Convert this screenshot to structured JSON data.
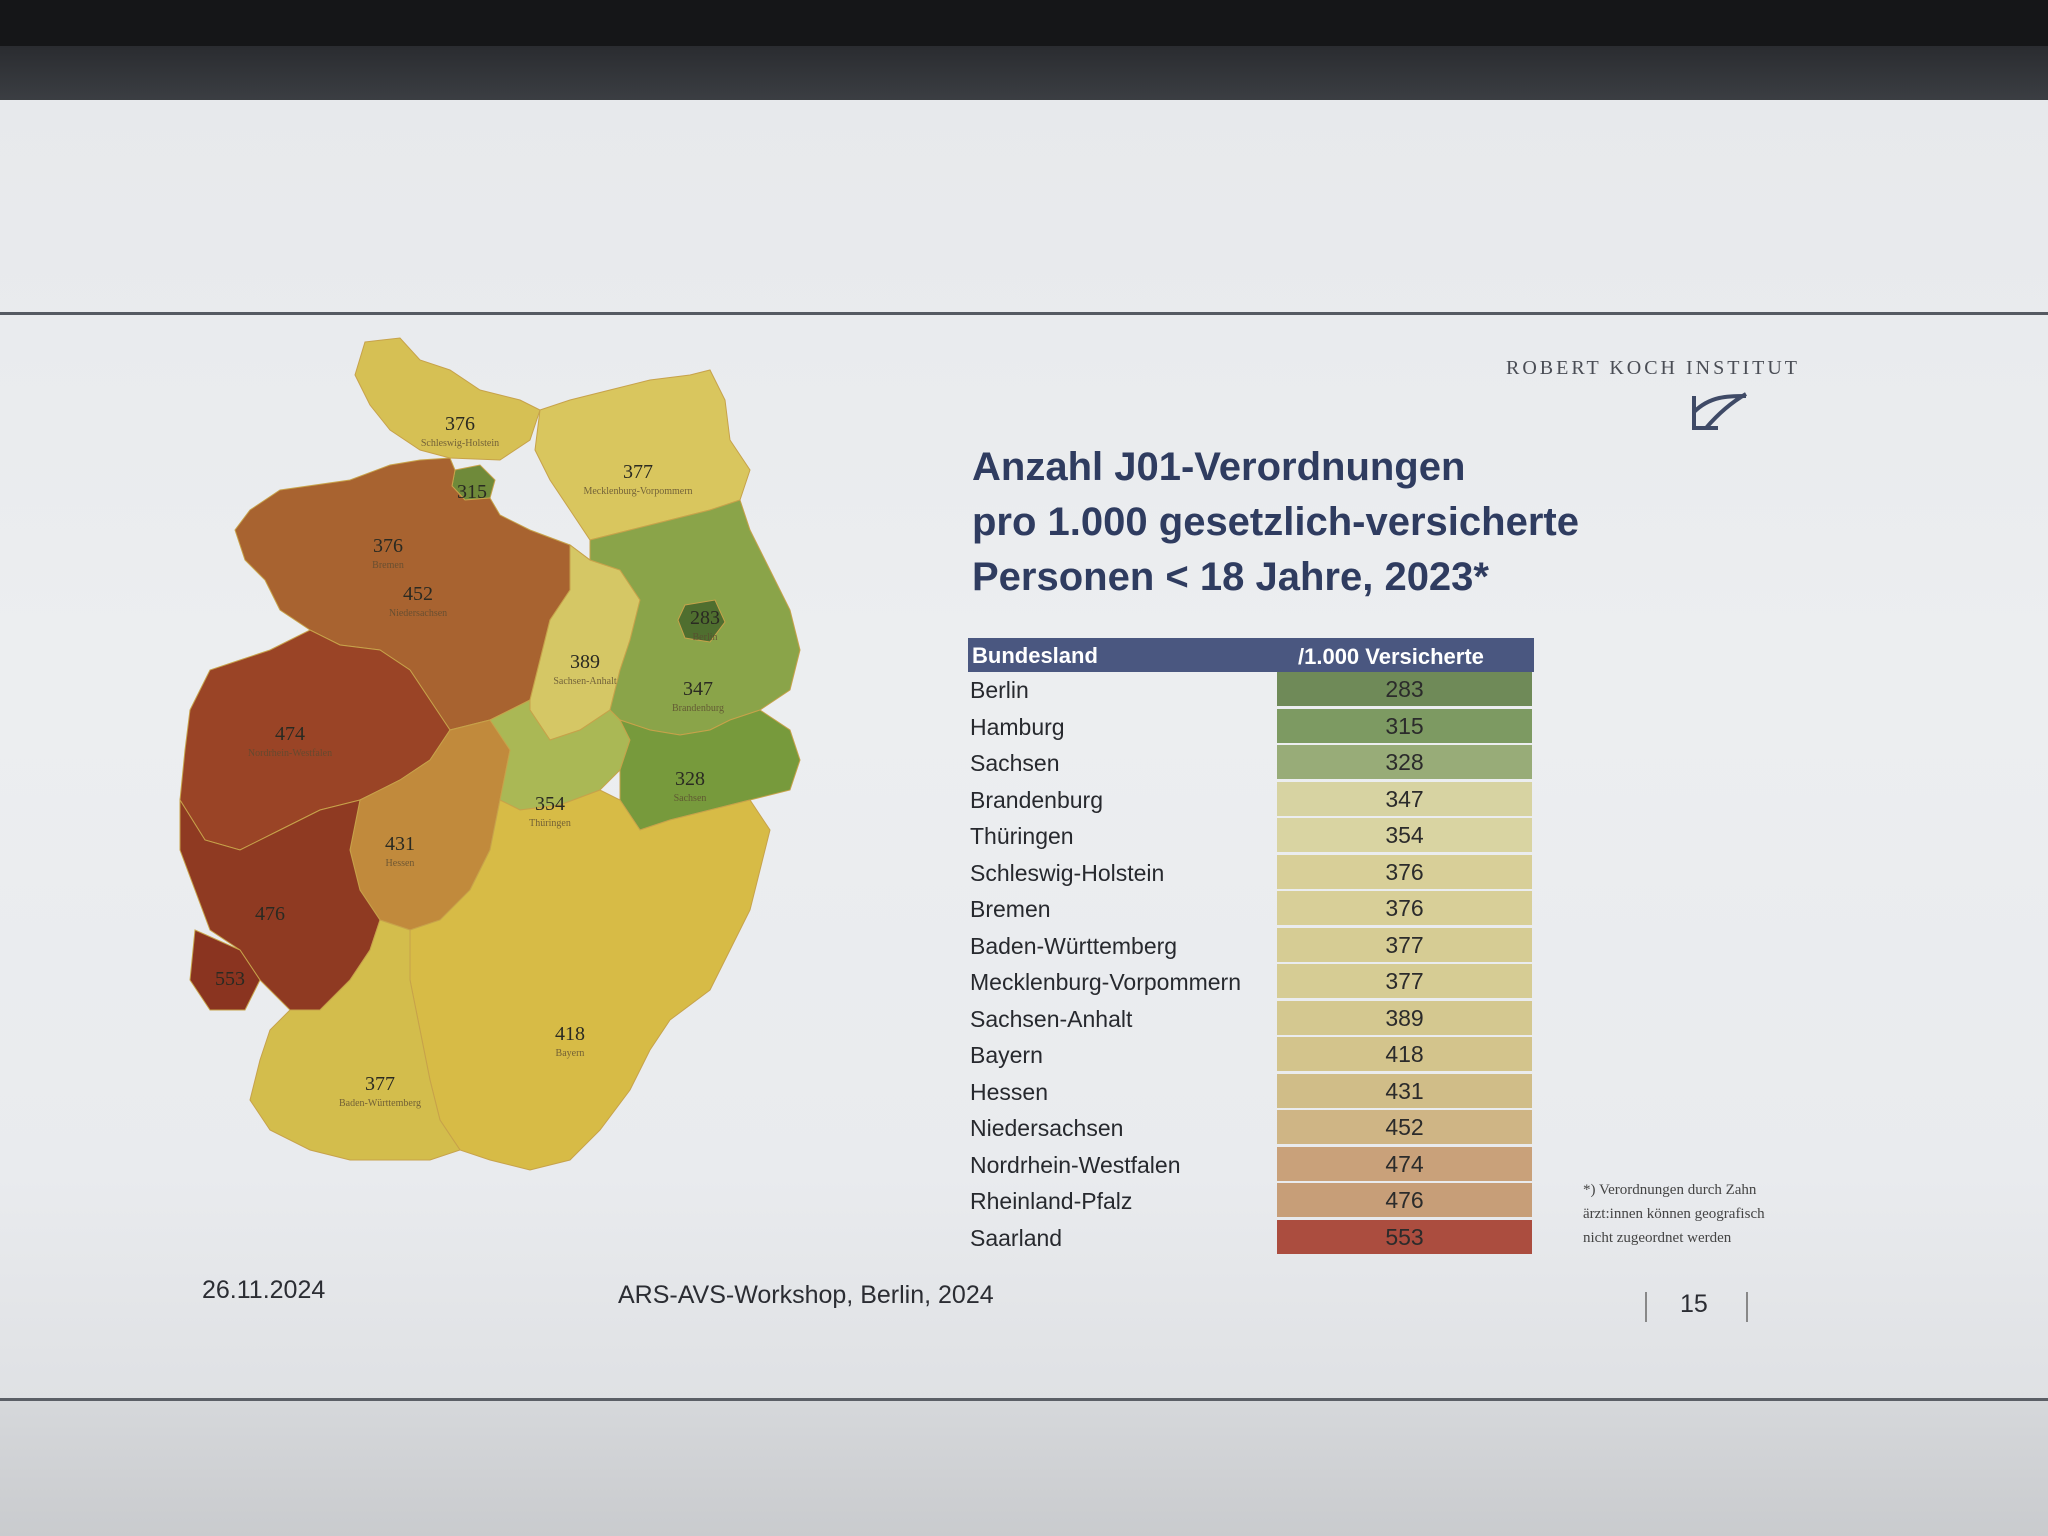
{
  "logo": {
    "text": "ROBERT KOCH INSTITUT"
  },
  "title": {
    "line1": "Anzahl J01-Verordnungen",
    "line2": "pro 1.000 gesetzlich-versicherte",
    "line3": "Personen < 18 Jahre, 2023*"
  },
  "table": {
    "col1": "Bundesland",
    "col2": "/1.000 Versicherte",
    "rows": [
      {
        "name": "Berlin",
        "value": "283",
        "color": "#6f8a58"
      },
      {
        "name": "Hamburg",
        "value": "315",
        "color": "#7d9a62"
      },
      {
        "name": "Sachsen",
        "value": "328",
        "color": "#98ac78"
      },
      {
        "name": "Brandenburg",
        "value": "347",
        "color": "#d7d3a2"
      },
      {
        "name": "Thüringen",
        "value": "354",
        "color": "#d9d4a2"
      },
      {
        "name": "Schleswig-Holstein",
        "value": "376",
        "color": "#d8cf98"
      },
      {
        "name": "Bremen",
        "value": "376",
        "color": "#d8cf98"
      },
      {
        "name": "Baden-Württemberg",
        "value": "377",
        "color": "#d6cc94"
      },
      {
        "name": "Mecklenburg-Vorpommern",
        "value": "377",
        "color": "#d6cc94"
      },
      {
        "name": "Sachsen-Anhalt",
        "value": "389",
        "color": "#d4c890"
      },
      {
        "name": "Bayern",
        "value": "418",
        "color": "#d3c48c"
      },
      {
        "name": "Hessen",
        "value": "431",
        "color": "#d0bd88"
      },
      {
        "name": "Niedersachsen",
        "value": "452",
        "color": "#cfb585"
      },
      {
        "name": "Nordrhein-Westfalen",
        "value": "474",
        "color": "#c9a17a"
      },
      {
        "name": "Rheinland-Pfalz",
        "value": "476",
        "color": "#c79e78"
      },
      {
        "name": "Saarland",
        "value": "553",
        "color": "#ab4d3f"
      }
    ]
  },
  "map": {
    "regions": [
      {
        "id": "schleswig-holstein",
        "label": "Schleswig-Holstein",
        "value": "376",
        "color": "#d6c054"
      },
      {
        "id": "mecklenburg-vorpommern",
        "label": "Mecklenburg-Vorpommern",
        "value": "377",
        "color": "#d9c65e"
      },
      {
        "id": "hamburg",
        "label": "Hamburg",
        "value": "315",
        "color": "#6f8a3a"
      },
      {
        "id": "bremen",
        "label": "Bremen",
        "value": "376",
        "color": "#d2b55a"
      },
      {
        "id": "niedersachsen",
        "label": "Niedersachsen",
        "value": "452",
        "color": "#a86330"
      },
      {
        "id": "sachsen-anhalt",
        "label": "Sachsen-Anhalt",
        "value": "389",
        "color": "#d5c765"
      },
      {
        "id": "brandenburg",
        "label": "Brandenburg",
        "value": "347",
        "color": "#8aa449"
      },
      {
        "id": "berlin",
        "label": "Berlin",
        "value": "283",
        "color": "#4f6e2f"
      },
      {
        "id": "nordrhein-westfalen",
        "label": "Nordrhein-Westfalen",
        "value": "474",
        "color": "#9a4426"
      },
      {
        "id": "hessen",
        "label": "Hessen",
        "value": "431",
        "color": "#c18a3c"
      },
      {
        "id": "thueringen",
        "label": "Thüringen",
        "value": "354",
        "color": "#aab855"
      },
      {
        "id": "sachsen",
        "label": "Sachsen",
        "value": "328",
        "color": "#779a3c"
      },
      {
        "id": "rheinland-pfalz",
        "label": "Rheinland-Pfalz",
        "value": "476",
        "color": "#8f3a22"
      },
      {
        "id": "saarland",
        "label": "Saarland",
        "value": "553",
        "color": "#8a3420"
      },
      {
        "id": "bayern",
        "label": "Bayern",
        "value": "418",
        "color": "#d7bb46"
      },
      {
        "id": "baden-wuerttemberg",
        "label": "Baden-Württemberg",
        "value": "377",
        "color": "#d3bd4c"
      }
    ]
  },
  "footnote": {
    "line1": "*) Verordnungen durch Zahn",
    "line2": "ärzt:innen können geografisch",
    "line3": "nicht zugeordnet werden"
  },
  "footer": {
    "date": "26.11.2024",
    "event": "ARS-AVS-Workshop, Berlin, 2024",
    "page": "15"
  }
}
